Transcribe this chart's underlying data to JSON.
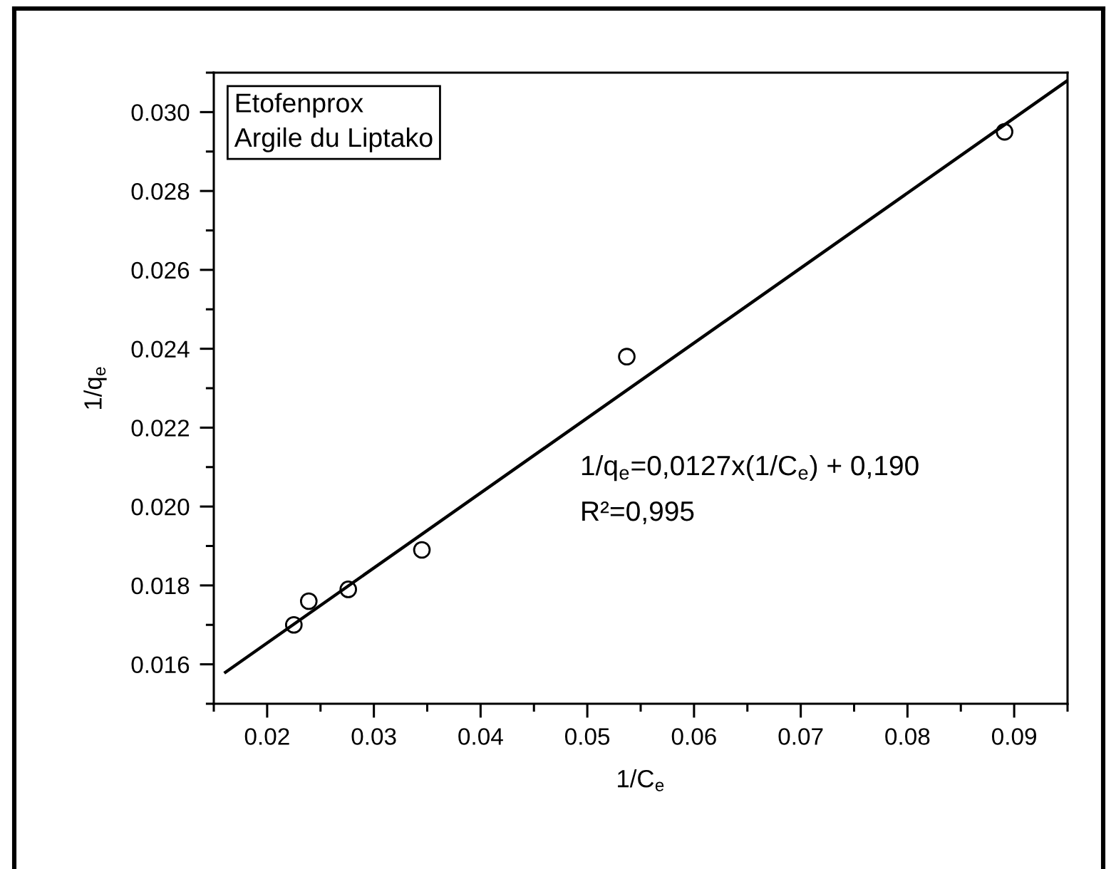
{
  "chart_data": {
    "type": "scatter",
    "xlabel": "1/C$_{e}$",
    "ylabel": "1/q$_{e}$",
    "annotations": [
      "Etofenprox\nArgile du Liptako",
      "1/q$_{e}$=0,0127x(1/C$_{e}$) + 0,190",
      "R²=0,995"
    ],
    "series": [
      {
        "color": "#000000",
        "marker": "circle",
        "x": [
          0.0225,
          0.0239,
          0.0276,
          0.0345,
          0.0537,
          0.0891
        ],
        "values": [
          0.017,
          0.0176,
          0.0179,
          0.0189,
          0.0238,
          0.0295
        ]
      },
      {
        "type": "line",
        "color": "#000000",
        "marker": "none",
        "line_style": "solid",
        "x": [
          0.0161,
          0.095
        ],
        "values": [
          0.0158,
          0.0308
        ]
      }
    ],
    "xlim": [
      0.015,
      0.095
    ],
    "ylim": [
      0.015,
      0.031
    ],
    "xticks": [
      {
        "value": 0.015,
        "label": null
      },
      0.02,
      {
        "value": 0.025,
        "label": null
      },
      0.03,
      {
        "value": 0.035,
        "label": null
      },
      0.04,
      {
        "value": 0.045,
        "label": null
      },
      0.05,
      {
        "value": 0.055,
        "label": null
      },
      0.06,
      {
        "value": 0.065,
        "label": null
      },
      0.07,
      {
        "value": 0.075,
        "label": null
      },
      0.08,
      {
        "value": 0.085,
        "label": null
      },
      0.09,
      {
        "value": 0.095,
        "label": null
      }
    ],
    "yticks": [
      {
        "value": 0.015,
        "label": null
      },
      0.016,
      {
        "value": 0.017,
        "label": null
      },
      0.018,
      {
        "value": 0.019,
        "label": null
      },
      {
        "value": 0.02,
        "label": "0.020"
      },
      {
        "value": 0.021,
        "label": null
      },
      0.022,
      {
        "value": 0.023,
        "label": null
      },
      0.024,
      {
        "value": 0.025,
        "label": null
      },
      0.026,
      {
        "value": 0.027,
        "label": null
      },
      0.028,
      {
        "value": 0.029,
        "label": null
      },
      {
        "value": 0.03,
        "label": "0.030"
      },
      {
        "value": 0.031,
        "label": null
      }
    ]
  }
}
